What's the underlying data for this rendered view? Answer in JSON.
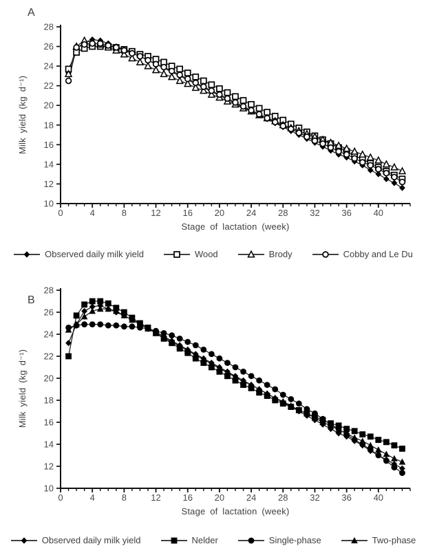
{
  "panels": [
    {
      "label": "A"
    },
    {
      "label": "B"
    }
  ],
  "chart_data": [
    {
      "type": "line",
      "panel": "A",
      "title": "",
      "xlabel": "Stage of lactation (week)",
      "ylabel": "Milk yield (kg d⁻¹)",
      "xlim": [
        0,
        44
      ],
      "ylim": [
        10,
        28
      ],
      "x_ticks_major": [
        0,
        4,
        8,
        12,
        16,
        20,
        24,
        28,
        32,
        36,
        40
      ],
      "x_minor_step": 1,
      "y_ticks": [
        10,
        12,
        14,
        16,
        18,
        20,
        22,
        24,
        26,
        28
      ],
      "grid": false,
      "legend_position": "bottom",
      "x": [
        1,
        2,
        3,
        4,
        5,
        6,
        7,
        8,
        9,
        10,
        11,
        12,
        13,
        14,
        15,
        16,
        17,
        18,
        19,
        20,
        21,
        22,
        23,
        24,
        25,
        26,
        27,
        28,
        29,
        30,
        31,
        32,
        33,
        34,
        35,
        36,
        37,
        38,
        39,
        40,
        41,
        42,
        43
      ],
      "series": [
        {
          "name": "Observed daily milk yield",
          "marker": "diamond-filled",
          "color": "#000000",
          "values": [
            23.3,
            25.8,
            26.4,
            26.7,
            26.6,
            26.3,
            26.0,
            25.7,
            25.3,
            25.0,
            24.6,
            24.2,
            23.8,
            23.4,
            23.0,
            22.6,
            22.2,
            21.8,
            21.4,
            21.0,
            20.6,
            20.2,
            19.8,
            19.4,
            19.0,
            18.6,
            18.2,
            17.8,
            17.4,
            17.0,
            16.6,
            16.2,
            15.8,
            15.4,
            15.0,
            14.7,
            14.3,
            13.9,
            13.4,
            13.0,
            12.5,
            12.1,
            11.6
          ]
        },
        {
          "name": "Wood",
          "marker": "square-open",
          "color": "#000000",
          "values": [
            23.7,
            25.4,
            25.8,
            26.0,
            26.0,
            26.0,
            25.9,
            25.7,
            25.5,
            25.2,
            25.0,
            24.7,
            24.4,
            24.0,
            23.7,
            23.3,
            22.9,
            22.5,
            22.1,
            21.7,
            21.3,
            20.9,
            20.5,
            20.1,
            19.7,
            19.3,
            18.9,
            18.5,
            18.1,
            17.7,
            17.3,
            16.9,
            16.5,
            16.1,
            15.7,
            15.3,
            14.9,
            14.5,
            14.1,
            13.7,
            13.3,
            12.9,
            12.5
          ]
        },
        {
          "name": "Brody",
          "marker": "triangle-open",
          "color": "#000000",
          "values": [
            23.2,
            26.0,
            26.6,
            26.4,
            26.2,
            25.9,
            25.6,
            25.2,
            24.8,
            24.4,
            24.0,
            23.6,
            23.2,
            22.9,
            22.5,
            22.2,
            21.8,
            21.5,
            21.1,
            20.8,
            20.4,
            20.1,
            19.7,
            19.4,
            19.0,
            18.7,
            18.4,
            18.0,
            17.7,
            17.4,
            17.1,
            16.8,
            16.5,
            16.2,
            15.9,
            15.6,
            15.3,
            15.0,
            14.7,
            14.4,
            14.0,
            13.7,
            13.3
          ]
        },
        {
          "name": "Cobby and Le Du",
          "marker": "circle-open",
          "color": "#000000",
          "values": [
            22.5,
            25.9,
            26.2,
            26.3,
            26.3,
            26.1,
            25.9,
            25.6,
            25.3,
            25.0,
            24.6,
            24.2,
            23.9,
            23.5,
            23.1,
            22.7,
            22.3,
            21.9,
            21.5,
            21.1,
            20.7,
            20.3,
            19.9,
            19.5,
            19.1,
            18.7,
            18.3,
            17.9,
            17.6,
            17.2,
            16.8,
            16.4,
            16.1,
            15.7,
            15.3,
            15.0,
            14.6,
            14.2,
            13.9,
            13.5,
            13.1,
            12.7,
            12.2
          ]
        }
      ]
    },
    {
      "type": "line",
      "panel": "B",
      "title": "",
      "xlabel": "Stage of lactation (week)",
      "ylabel": "Milk yield (kg d⁻¹)",
      "xlim": [
        0,
        44
      ],
      "ylim": [
        10,
        28
      ],
      "x_ticks_major": [
        0,
        4,
        8,
        12,
        16,
        20,
        24,
        28,
        32,
        36,
        40
      ],
      "x_minor_step": 1,
      "y_ticks": [
        10,
        12,
        14,
        16,
        18,
        20,
        22,
        24,
        26,
        28
      ],
      "grid": false,
      "legend_position": "bottom",
      "x": [
        1,
        2,
        3,
        4,
        5,
        6,
        7,
        8,
        9,
        10,
        11,
        12,
        13,
        14,
        15,
        16,
        17,
        18,
        19,
        20,
        21,
        22,
        23,
        24,
        25,
        26,
        27,
        28,
        29,
        30,
        31,
        32,
        33,
        34,
        35,
        36,
        37,
        38,
        39,
        40,
        41,
        42,
        43
      ],
      "series": [
        {
          "name": "Observed daily milk yield",
          "marker": "diamond-filled",
          "color": "#000000",
          "values": [
            23.2,
            24.9,
            26.1,
            26.5,
            26.6,
            26.3,
            26.0,
            25.7,
            25.3,
            25.0,
            24.6,
            24.2,
            23.8,
            23.4,
            23.0,
            22.6,
            22.2,
            21.8,
            21.4,
            21.0,
            20.6,
            20.2,
            19.8,
            19.4,
            19.0,
            18.6,
            18.2,
            17.8,
            17.4,
            17.0,
            16.6,
            16.2,
            15.8,
            15.4,
            15.0,
            14.7,
            14.3,
            13.9,
            13.4,
            13.0,
            12.6,
            12.2,
            11.8
          ]
        },
        {
          "name": "Nelder",
          "marker": "square-filled",
          "color": "#000000",
          "values": [
            22.0,
            25.7,
            26.7,
            27.0,
            27.0,
            26.8,
            26.4,
            26.0,
            25.5,
            25.0,
            24.6,
            24.1,
            23.6,
            23.2,
            22.7,
            22.3,
            21.8,
            21.4,
            21.0,
            20.6,
            20.2,
            19.8,
            19.4,
            19.1,
            18.7,
            18.4,
            18.0,
            17.7,
            17.4,
            17.1,
            16.8,
            16.5,
            16.2,
            15.9,
            15.7,
            15.4,
            15.2,
            14.9,
            14.7,
            14.4,
            14.2,
            13.9,
            13.6
          ]
        },
        {
          "name": "Single-phase",
          "marker": "circle-filled",
          "color": "#000000",
          "values": [
            24.6,
            24.8,
            24.9,
            24.9,
            24.9,
            24.8,
            24.8,
            24.7,
            24.7,
            24.6,
            24.5,
            24.3,
            24.1,
            23.9,
            23.6,
            23.3,
            23.0,
            22.6,
            22.2,
            21.8,
            21.4,
            21.0,
            20.6,
            20.2,
            19.8,
            19.4,
            19.0,
            18.5,
            18.1,
            17.7,
            17.2,
            16.8,
            16.3,
            15.8,
            15.4,
            14.9,
            14.4,
            14.0,
            13.5,
            13.0,
            12.5,
            11.9,
            11.4
          ]
        },
        {
          "name": "Two-phase",
          "marker": "triangle-filled",
          "color": "#000000",
          "values": [
            24.4,
            24.9,
            25.6,
            26.1,
            26.3,
            26.3,
            26.1,
            25.7,
            25.3,
            24.9,
            24.5,
            24.1,
            23.7,
            23.3,
            22.9,
            22.5,
            22.1,
            21.7,
            21.3,
            20.9,
            20.5,
            20.1,
            19.7,
            19.4,
            19.0,
            18.6,
            18.2,
            17.9,
            17.5,
            17.1,
            16.8,
            16.4,
            16.0,
            15.7,
            15.3,
            15.0,
            14.6,
            14.3,
            13.9,
            13.5,
            13.1,
            12.7,
            12.4
          ]
        }
      ]
    }
  ]
}
